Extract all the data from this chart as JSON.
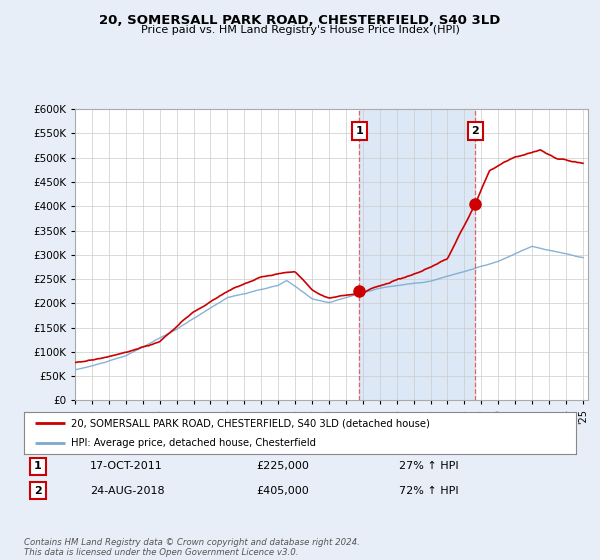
{
  "title": "20, SOMERSALL PARK ROAD, CHESTERFIELD, S40 3LD",
  "subtitle": "Price paid vs. HM Land Registry's House Price Index (HPI)",
  "ytick_values": [
    0,
    50000,
    100000,
    150000,
    200000,
    250000,
    300000,
    350000,
    400000,
    450000,
    500000,
    550000,
    600000
  ],
  "x_start_year": 1995,
  "x_end_year": 2025,
  "background_color": "#e8eef8",
  "plot_bg_color": "#ffffff",
  "red_line_color": "#cc0000",
  "blue_line_color": "#7aaad0",
  "sale1_year": 2011.8,
  "sale1_price": 225000,
  "sale2_year": 2018.65,
  "sale2_price": 405000,
  "legend_label1": "20, SOMERSALL PARK ROAD, CHESTERFIELD, S40 3LD (detached house)",
  "legend_label2": "HPI: Average price, detached house, Chesterfield",
  "annotation1_date": "17-OCT-2011",
  "annotation1_price": "£225,000",
  "annotation1_hpi": "27% ↑ HPI",
  "annotation2_date": "24-AUG-2018",
  "annotation2_price": "£405,000",
  "annotation2_hpi": "72% ↑ HPI",
  "footer": "Contains HM Land Registry data © Crown copyright and database right 2024.\nThis data is licensed under the Open Government Licence v3.0.",
  "shade_color": "#dce8f5",
  "vline_color": "#dd4444"
}
